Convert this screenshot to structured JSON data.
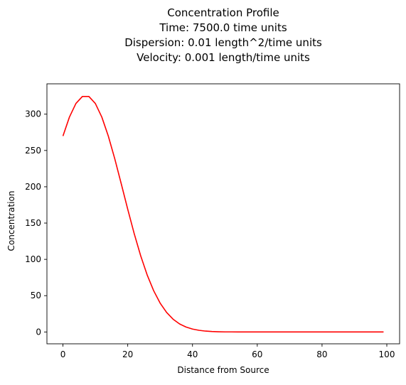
{
  "chart_data": {
    "type": "line",
    "title_lines": [
      "Concentration Profile",
      "Time: 7500.0 time units",
      "Dispersion: 0.01 length^2/time units",
      "Velocity: 0.001 length/time units"
    ],
    "xlabel": "Distance from Source",
    "ylabel": "Concentration",
    "xlim": [
      -4.95,
      103.95
    ],
    "ylim": [
      -16.3,
      341.8
    ],
    "xticks": [
      0,
      20,
      40,
      60,
      80,
      100
    ],
    "yticks": [
      0,
      50,
      100,
      150,
      200,
      250,
      300
    ],
    "grid": false,
    "legend": "none",
    "series": [
      {
        "color": "#ff0000",
        "x": [
          0,
          2,
          4,
          6,
          8,
          10,
          12,
          14,
          16,
          18,
          20,
          22,
          24,
          26,
          28,
          30,
          32,
          34,
          36,
          38,
          40,
          42,
          44,
          46,
          48,
          50,
          52,
          54,
          56,
          58,
          60,
          62,
          64,
          66,
          68,
          70,
          72,
          74,
          76,
          78,
          80,
          82,
          84,
          86,
          88,
          90,
          92,
          94,
          96,
          98,
          99
        ],
        "y": [
          269.9,
          296.0,
          314.7,
          324.4,
          324.4,
          314.7,
          296.0,
          269.9,
          238.5,
          204.1,
          169.1,
          135.4,
          104.9,
          78.6,
          56.9,
          39.8,
          26.9,
          17.6,
          11.1,
          6.8,
          4.0,
          2.3,
          1.2,
          0.6,
          0.3,
          0.1,
          0.1,
          0.0,
          0.0,
          0.0,
          0.0,
          0.0,
          0.0,
          0.0,
          0.0,
          0.0,
          0.0,
          0.0,
          0.0,
          0.0,
          0.0,
          0.0,
          0.0,
          0.0,
          0.0,
          0.0,
          0.0,
          0.0,
          0.0,
          0.0,
          0.0
        ]
      }
    ]
  }
}
